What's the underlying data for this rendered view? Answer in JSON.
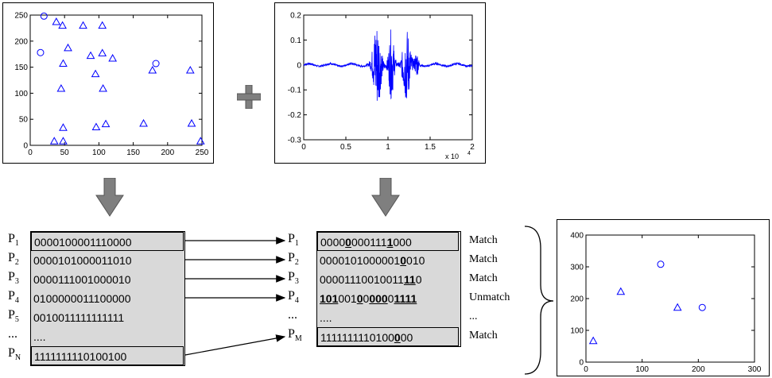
{
  "chart_data": [
    {
      "type": "scatter",
      "xlim": [
        0,
        250
      ],
      "ylim": [
        0,
        250
      ],
      "xticks": [
        "0",
        "50",
        "100",
        "150",
        "200",
        "250"
      ],
      "yticks": [
        "0",
        "50",
        "100",
        "150",
        "200",
        "250"
      ],
      "series": [
        {
          "marker": "circle",
          "color": "#0000ff",
          "points": [
            [
              20,
              248
            ],
            [
              15,
              178
            ],
            [
              183,
              157
            ]
          ]
        },
        {
          "marker": "triangle",
          "color": "#0000ff",
          "points": [
            [
              38,
              237
            ],
            [
              47,
              230
            ],
            [
              77,
              230
            ],
            [
              105,
              230
            ],
            [
              55,
              187
            ],
            [
              88,
              172
            ],
            [
              105,
              177
            ],
            [
              120,
              167
            ],
            [
              48,
              157
            ],
            [
              95,
              137
            ],
            [
              178,
              144
            ],
            [
              233,
              144
            ],
            [
              106,
              109
            ],
            [
              45,
              109
            ],
            [
              110,
              41
            ],
            [
              96,
              35
            ],
            [
              48,
              34
            ],
            [
              165,
              42
            ],
            [
              235,
              42
            ],
            [
              35,
              8
            ],
            [
              48,
              8
            ],
            [
              248,
              8
            ]
          ]
        }
      ]
    },
    {
      "type": "line",
      "description_signal": "speech waveform",
      "xlim": [
        0,
        20000
      ],
      "ylim": [
        -0.3,
        0.2
      ],
      "xticks": [
        "0",
        "0.5",
        "1",
        "1.5",
        "2"
      ],
      "yticks": [
        "0.2",
        "0.1",
        "0",
        "-0.1",
        "-0.2",
        "-0.3"
      ],
      "x_multiplier": "x 10",
      "x_multiplier_exp": "4",
      "color": "#0000ff"
    },
    {
      "type": "scatter",
      "xlim": [
        0,
        300
      ],
      "ylim": [
        0,
        400
      ],
      "xticks": [
        "0",
        "100",
        "200",
        "300"
      ],
      "yticks": [
        "0",
        "100",
        "200",
        "300",
        "400"
      ],
      "series": [
        {
          "marker": "circle",
          "color": "#0000ff",
          "points": [
            [
              133,
              308
            ],
            [
              207,
              172
            ]
          ]
        },
        {
          "marker": "triangle",
          "color": "#0000ff",
          "points": [
            [
              13,
              67
            ],
            [
              62,
              222
            ],
            [
              163,
              172
            ]
          ]
        }
      ]
    }
  ],
  "left_table": {
    "labels": [
      {
        "p": "P",
        "sub": "1"
      },
      {
        "p": "P",
        "sub": "2"
      },
      {
        "p": "P",
        "sub": "3"
      },
      {
        "p": "P",
        "sub": "4"
      },
      {
        "p": "P",
        "sub": "5"
      },
      {
        "p": "...",
        "sub": ""
      },
      {
        "p": "P",
        "sub": "N"
      }
    ],
    "rows": [
      "0000100001110000",
      "0000101000011010",
      "0000111001000010",
      "0100000011100000",
      "0010011111111111",
      "....",
      "1111111110100100"
    ]
  },
  "right_table": {
    "labels": [
      {
        "p": "P",
        "sub": "1"
      },
      {
        "p": "P",
        "sub": "2"
      },
      {
        "p": "P",
        "sub": "3"
      },
      {
        "p": "P",
        "sub": "4"
      },
      {
        "p": "...",
        "sub": ""
      },
      {
        "p": "P",
        "sub": "M"
      }
    ],
    "rows": [
      [
        [
          "0000",
          ""
        ],
        [
          "0",
          "bu"
        ],
        [
          "000111",
          ""
        ],
        [
          "1",
          "bu"
        ],
        [
          "000",
          ""
        ]
      ],
      [
        [
          "0000101000001",
          ""
        ],
        [
          "0",
          "bu"
        ],
        [
          "010",
          ""
        ]
      ],
      [
        [
          "00001110010011",
          ""
        ],
        [
          "11",
          "bu"
        ],
        [
          "0",
          ""
        ]
      ],
      [
        [
          "101",
          "bu"
        ],
        [
          "001",
          ""
        ],
        [
          "0",
          "bu"
        ],
        [
          "0",
          ""
        ],
        [
          "000",
          "bu"
        ],
        [
          "0",
          ""
        ],
        [
          "1111",
          "bu"
        ]
      ],
      [
        [
          "....",
          ""
        ]
      ],
      [
        [
          "1111111110100",
          ""
        ],
        [
          "0",
          "bu"
        ],
        [
          "00",
          ""
        ]
      ]
    ],
    "results": [
      "Match",
      "Match",
      "Match",
      "Unmatch",
      "...",
      "Match"
    ]
  },
  "plus_symbol": "+"
}
